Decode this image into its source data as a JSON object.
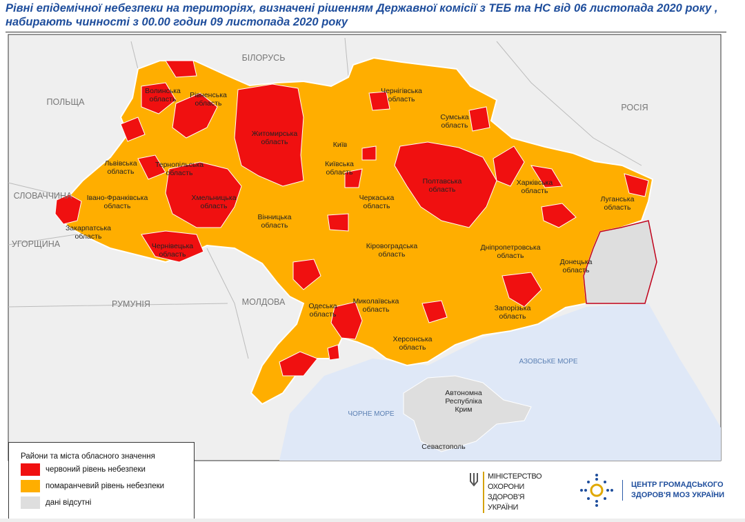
{
  "title": {
    "line1": "Рівні епідемічної небезпеки на територіях, визначені рішенням Державної комісії з ТЕБ та НС від 06 листопада 2020 року ,",
    "line2": "набирають чинності з 00.00 годин 09 листопада 2020 року"
  },
  "map": {
    "colors": {
      "red": "#f01010",
      "orange": "#ffae00",
      "no_data": "#dedede",
      "sea": "#dfe8f7",
      "neighbors": "#efefef",
      "border": "#ffffff",
      "occupied_line": "#c0001a"
    },
    "countries": [
      "БІЛОРУСЬ",
      "ПОЛЬЩА",
      "РОСІЯ",
      "СЛОВАЧЧИНА",
      "УГОРЩИНА",
      "РУМУНІЯ",
      "МОЛДОВА"
    ],
    "seas": [
      "ЧОРНЕ МОРЕ",
      "АЗОВСЬКЕ МОРЕ"
    ],
    "regions": [
      {
        "name": "Волинська область"
      },
      {
        "name": "Рівненська область"
      },
      {
        "name": "Житомирська область"
      },
      {
        "name": "Чернігівська область"
      },
      {
        "name": "Сумська область"
      },
      {
        "name": "Київ"
      },
      {
        "name": "Київська область"
      },
      {
        "name": "Львівська область"
      },
      {
        "name": "Тернопільська область"
      },
      {
        "name": "Хмельницька область"
      },
      {
        "name": "Івано-Франківська область"
      },
      {
        "name": "Закарпатська область"
      },
      {
        "name": "Чернівецька область"
      },
      {
        "name": "Вінницька область"
      },
      {
        "name": "Черкаська область"
      },
      {
        "name": "Полтавська область"
      },
      {
        "name": "Харківська область"
      },
      {
        "name": "Луганська область"
      },
      {
        "name": "Кіровоградська область"
      },
      {
        "name": "Дніпропетровська область"
      },
      {
        "name": "Донецька область"
      },
      {
        "name": "Одеська область"
      },
      {
        "name": "Миколаївська область"
      },
      {
        "name": "Запорізька область"
      },
      {
        "name": "Херсонська область"
      },
      {
        "name": "Автономна Республіка Крим"
      },
      {
        "name": "Севастополь"
      }
    ]
  },
  "legend": {
    "heading": "Райони та міста обласного значення",
    "items": [
      {
        "label": "червоний рівень небезпеки",
        "color": "#f01010"
      },
      {
        "label": "помаранчевий рівень небезпеки",
        "color": "#ffae00"
      },
      {
        "label": "дані відсутні",
        "color": "#dedede"
      }
    ]
  },
  "logos": {
    "ministry": [
      "МІНІСТЕРСТВО",
      "ОХОРОНИ",
      "ЗДОРОВ'Я",
      "УКРАЇНИ"
    ],
    "center": [
      "ЦЕНТР ГРОМАДСЬКОГО",
      "ЗДОРОВ'Я МОЗ УКРАЇНИ"
    ]
  }
}
